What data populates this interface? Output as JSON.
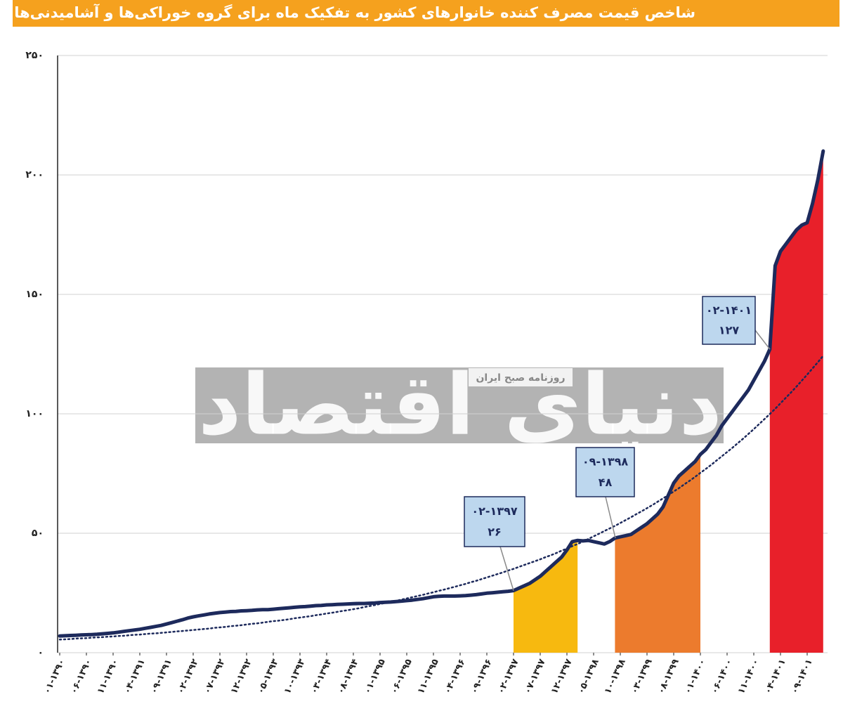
{
  "chart_data": {
    "type": "line",
    "title": "شاخص قیمت مصرف کننده خانوارهای کشور به تفکیک ماه برای گروه خوراکی‌ها و آشامیدنی‌ها",
    "categories": [
      "۰۱-۱۳۹۰",
      null,
      null,
      null,
      null,
      "۰۶-۱۳۹۰",
      null,
      null,
      null,
      null,
      "۱۱-۱۳۹۰",
      null,
      null,
      null,
      null,
      "۰۴-۱۳۹۱",
      null,
      null,
      null,
      null,
      "۰۹-۱۳۹۱",
      null,
      null,
      null,
      null,
      "۰۲-۱۳۹۲",
      null,
      null,
      null,
      null,
      "۰۷-۱۳۹۲",
      null,
      null,
      null,
      null,
      "۱۲-۱۳۹۲",
      null,
      null,
      null,
      null,
      "۰۵-۱۳۹۳",
      null,
      null,
      null,
      null,
      "۱۰-۱۳۹۳",
      null,
      null,
      null,
      null,
      "۰۳-۱۳۹۴",
      null,
      null,
      null,
      null,
      "۰۸-۱۳۹۴",
      null,
      null,
      null,
      null,
      "۰۱-۱۳۹۵",
      null,
      null,
      null,
      null,
      "۰۶-۱۳۹۵",
      null,
      null,
      null,
      null,
      "۱۱-۱۳۹۵",
      null,
      null,
      null,
      null,
      "۰۴-۱۳۹۶",
      null,
      null,
      null,
      null,
      "۰۹-۱۳۹۶",
      null,
      null,
      null,
      null,
      "۰۲-۱۳۹۷",
      null,
      null,
      null,
      null,
      "۰۷-۱۳۹۷",
      null,
      null,
      null,
      null,
      "۱۲-۱۳۹۷",
      null,
      null,
      null,
      null,
      "۰۵-۱۳۹۸",
      null,
      null,
      null,
      null,
      "۱۰-۱۳۹۸",
      null,
      null,
      null,
      null,
      "۰۳-۱۳۹۹",
      null,
      null,
      null,
      null,
      "۰۸-۱۳۹۹",
      null,
      null,
      null,
      null,
      "۰۱-۱۴۰۰",
      null,
      null,
      null,
      null,
      "۰۶-۱۴۰۰",
      null,
      null,
      null,
      null,
      "۱۱-۱۴۰۰",
      null,
      null,
      null,
      null,
      "۰۴-۱۴۰۱",
      null,
      null,
      null,
      null,
      "۰۹-۱۴۰۱",
      null,
      null,
      null
    ],
    "series": [
      {
        "color": "#1d2a5c",
        "values": [
          7,
          7.1,
          7.2,
          7.3,
          7.4,
          7.5,
          7.6,
          7.7,
          7.9,
          8.1,
          8.3,
          8.6,
          8.9,
          9.2,
          9.5,
          9.8,
          10.2,
          10.6,
          11,
          11.4,
          12,
          12.6,
          13.2,
          13.8,
          14.5,
          15,
          15.4,
          15.8,
          16.2,
          16.5,
          16.8,
          17,
          17.2,
          17.3,
          17.5,
          17.6,
          17.7,
          17.9,
          18,
          18,
          18.2,
          18.4,
          18.6,
          18.8,
          19,
          19.2,
          19.3,
          19.5,
          19.7,
          19.8,
          20,
          20.1,
          20.2,
          20.3,
          20.4,
          20.5,
          20.6,
          20.6,
          20.7,
          20.8,
          21,
          21.1,
          21.2,
          21.4,
          21.6,
          21.8,
          22,
          22.3,
          22.6,
          23,
          23.4,
          23.6,
          23.7,
          23.7,
          23.7,
          23.8,
          23.9,
          24.1,
          24.3,
          24.6,
          24.9,
          25.1,
          25.3,
          25.5,
          25.7,
          26,
          27,
          28,
          29,
          30.5,
          32,
          34,
          36,
          38,
          40,
          43,
          46.5,
          47,
          46.8,
          47,
          46.5,
          46,
          45.5,
          46.5,
          48,
          48.5,
          49,
          49.5,
          51,
          52.5,
          54,
          56,
          58,
          61,
          66,
          71,
          74,
          76,
          78,
          80,
          83,
          85,
          88,
          91,
          95,
          98,
          101,
          104,
          107,
          110,
          114,
          118,
          122,
          127,
          162,
          168,
          171,
          174,
          177,
          179,
          180,
          188,
          198,
          210
        ]
      },
      {
        "color": "#1d2a5c",
        "dash": "dotted",
        "values": [
          5.5,
          5.6,
          5.7,
          5.9,
          6,
          6.1,
          6.3,
          6.4,
          6.5,
          6.7,
          6.8,
          7,
          7.1,
          7.3,
          7.5,
          7.6,
          7.8,
          8,
          8.1,
          8.3,
          8.5,
          8.7,
          8.9,
          9.1,
          9.3,
          9.5,
          9.7,
          9.9,
          10.1,
          10.4,
          10.6,
          10.8,
          11.1,
          11.3,
          11.5,
          11.8,
          12.1,
          12.3,
          12.6,
          12.9,
          13.2,
          13.4,
          13.7,
          14,
          14.4,
          14.7,
          15,
          15.3,
          15.7,
          16,
          16.4,
          16.7,
          17.1,
          17.5,
          17.8,
          18.2,
          18.6,
          19.1,
          19.5,
          19.9,
          20.4,
          20.8,
          21.3,
          21.7,
          22.2,
          22.7,
          23.2,
          23.7,
          24.2,
          24.8,
          25.3,
          25.9,
          26.4,
          27,
          27.6,
          28.2,
          28.8,
          29.5,
          30.1,
          30.8,
          31.5,
          32.2,
          32.9,
          33.6,
          34.4,
          35.1,
          35.9,
          36.7,
          37.5,
          38.3,
          39.1,
          40,
          40.8,
          41.7,
          42.7,
          43.6,
          44.6,
          45.5,
          46.5,
          47.6,
          48.7,
          49.8,
          50.9,
          52,
          53.1,
          54.3,
          55.5,
          56.7,
          58,
          59.2,
          60.5,
          61.8,
          63.2,
          64.6,
          66,
          67.5,
          68.9,
          70.5,
          72,
          73.6,
          75.3,
          76.9,
          78.6,
          80.4,
          82.2,
          84,
          85.8,
          87.7,
          89.6,
          91.6,
          93.6,
          95.7,
          97.8,
          99.9,
          102.1,
          104.4,
          106.7,
          109,
          111.4,
          113.9,
          116.4,
          119,
          121.6,
          124.3
        ]
      },
      {
        "color": "#f7b90f",
        "kind": "area",
        "values": [
          null,
          null,
          null,
          null,
          null,
          null,
          null,
          null,
          null,
          null,
          null,
          null,
          null,
          null,
          null,
          null,
          null,
          null,
          null,
          null,
          null,
          null,
          null,
          null,
          null,
          null,
          null,
          null,
          null,
          null,
          null,
          null,
          null,
          null,
          null,
          null,
          null,
          null,
          null,
          null,
          null,
          null,
          null,
          null,
          null,
          null,
          null,
          null,
          null,
          null,
          null,
          null,
          null,
          null,
          null,
          null,
          null,
          null,
          null,
          null,
          null,
          null,
          null,
          null,
          null,
          null,
          null,
          null,
          null,
          null,
          null,
          null,
          null,
          null,
          null,
          null,
          null,
          null,
          null,
          null,
          null,
          null,
          null,
          null,
          null,
          26,
          27,
          28,
          29,
          30.5,
          32,
          34,
          36,
          38,
          40,
          43,
          46.5,
          47,
          null,
          null,
          null,
          null,
          null,
          null,
          null,
          null,
          null,
          null,
          null,
          null,
          null,
          null,
          null,
          null,
          null,
          null,
          null,
          null,
          null,
          null,
          null,
          null,
          null,
          null,
          null,
          null,
          null,
          null,
          null,
          null,
          null,
          null,
          null,
          null,
          null,
          null,
          null,
          null,
          null,
          null,
          null,
          null,
          null,
          null
        ]
      },
      {
        "color": "#ec7b2d",
        "kind": "area",
        "values": [
          null,
          null,
          null,
          null,
          null,
          null,
          null,
          null,
          null,
          null,
          null,
          null,
          null,
          null,
          null,
          null,
          null,
          null,
          null,
          null,
          null,
          null,
          null,
          null,
          null,
          null,
          null,
          null,
          null,
          null,
          null,
          null,
          null,
          null,
          null,
          null,
          null,
          null,
          null,
          null,
          null,
          null,
          null,
          null,
          null,
          null,
          null,
          null,
          null,
          null,
          null,
          null,
          null,
          null,
          null,
          null,
          null,
          null,
          null,
          null,
          null,
          null,
          null,
          null,
          null,
          null,
          null,
          null,
          null,
          null,
          null,
          null,
          null,
          null,
          null,
          null,
          null,
          null,
          null,
          null,
          null,
          null,
          null,
          null,
          null,
          null,
          null,
          null,
          null,
          null,
          null,
          null,
          null,
          null,
          null,
          null,
          null,
          null,
          null,
          null,
          null,
          null,
          null,
          null,
          48,
          48.5,
          49,
          49.5,
          51,
          52.5,
          54,
          56,
          58,
          61,
          66,
          71,
          74,
          76,
          78,
          80,
          83,
          null,
          null,
          null,
          null,
          null,
          null,
          null,
          null,
          null,
          null,
          null,
          null,
          null,
          null,
          null,
          null,
          null,
          null,
          null,
          null,
          null,
          null,
          null
        ]
      },
      {
        "color": "#e8202a",
        "kind": "area",
        "values": [
          null,
          null,
          null,
          null,
          null,
          null,
          null,
          null,
          null,
          null,
          null,
          null,
          null,
          null,
          null,
          null,
          null,
          null,
          null,
          null,
          null,
          null,
          null,
          null,
          null,
          null,
          null,
          null,
          null,
          null,
          null,
          null,
          null,
          null,
          null,
          null,
          null,
          null,
          null,
          null,
          null,
          null,
          null,
          null,
          null,
          null,
          null,
          null,
          null,
          null,
          null,
          null,
          null,
          null,
          null,
          null,
          null,
          null,
          null,
          null,
          null,
          null,
          null,
          null,
          null,
          null,
          null,
          null,
          null,
          null,
          null,
          null,
          null,
          null,
          null,
          null,
          null,
          null,
          null,
          null,
          null,
          null,
          null,
          null,
          null,
          null,
          null,
          null,
          null,
          null,
          null,
          null,
          null,
          null,
          null,
          null,
          null,
          null,
          null,
          null,
          null,
          null,
          null,
          null,
          null,
          null,
          null,
          null,
          null,
          null,
          null,
          null,
          null,
          null,
          null,
          null,
          null,
          null,
          null,
          null,
          null,
          null,
          null,
          null,
          null,
          null,
          null,
          null,
          null,
          null,
          null,
          null,
          null,
          127,
          162,
          168,
          171,
          174,
          177,
          179,
          180,
          188,
          198,
          210
        ]
      }
    ],
    "ylim": [
      0,
      250
    ],
    "yticks": [
      {
        "value": 0,
        "label": "۰"
      },
      {
        "value": 50,
        "label": "۵۰"
      },
      {
        "value": 100,
        "label": "۱۰۰"
      },
      {
        "value": 150,
        "label": "۱۵۰"
      },
      {
        "value": 200,
        "label": "۲۰۰"
      },
      {
        "value": 250,
        "label": "۲۵۰"
      }
    ],
    "grid": true,
    "annotations": [
      {
        "date": "۰۲-۱۳۹۷",
        "value": 26,
        "value_label": "۲۶"
      },
      {
        "date": "۰۹-۱۳۹۸",
        "value": 48,
        "value_label": "۴۸"
      },
      {
        "date": "۰۲-۱۴۰۱",
        "value": 127,
        "value_label": "۱۲۷"
      }
    ],
    "watermark": {
      "title": "دنیای اقتصاد",
      "subtitle": "روزنامه صبح ایران"
    }
  }
}
